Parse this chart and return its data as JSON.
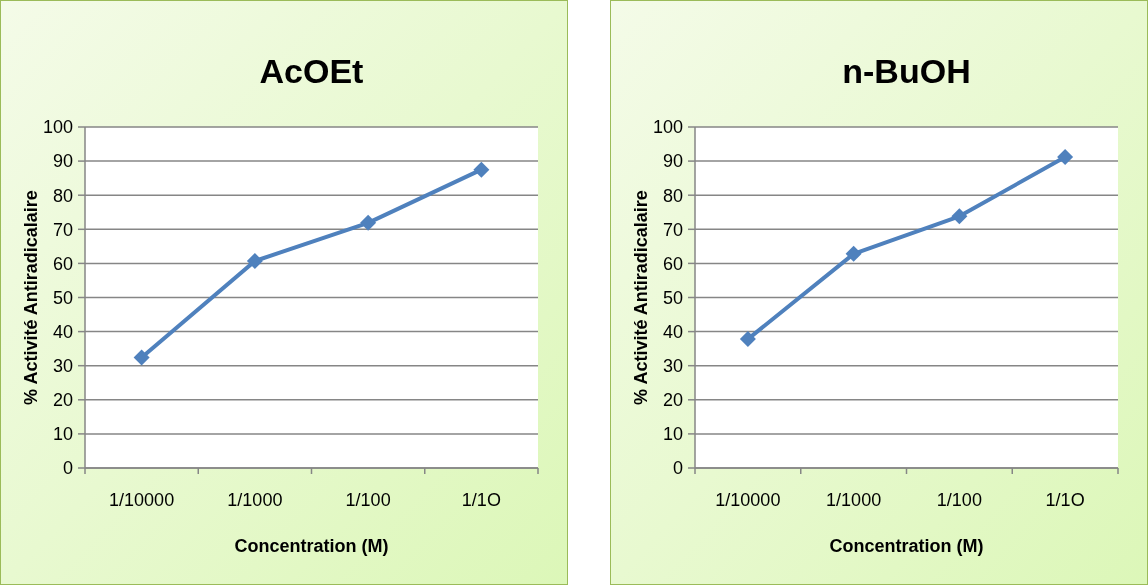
{
  "chart_data": [
    {
      "type": "line",
      "title": "AcOEt",
      "xlabel": "Concentration (M)",
      "ylabel": "% Activité Antiradicalaire",
      "categories": [
        "1/10000",
        "1/1000",
        "1/100",
        "1/1O"
      ],
      "values": [
        32.4,
        60.7,
        71.9,
        87.5
      ],
      "color": "#4f81bd",
      "ylim": [
        0,
        100
      ],
      "yticks": [
        0,
        10,
        20,
        30,
        40,
        50,
        60,
        70,
        80,
        90,
        100
      ],
      "grid": "y",
      "marker": "diamond"
    },
    {
      "type": "line",
      "title": "n-BuOH",
      "xlabel": "Concentration (M)",
      "ylabel": "% Activité Antiradicalaire",
      "categories": [
        "1/10000",
        "1/1000",
        "1/100",
        "1/1O"
      ],
      "values": [
        37.8,
        62.8,
        73.8,
        91.2
      ],
      "color": "#4f81bd",
      "ylim": [
        0,
        100
      ],
      "yticks": [
        0,
        10,
        20,
        30,
        40,
        50,
        60,
        70,
        80,
        90,
        100
      ],
      "grid": "y",
      "marker": "diamond"
    }
  ]
}
